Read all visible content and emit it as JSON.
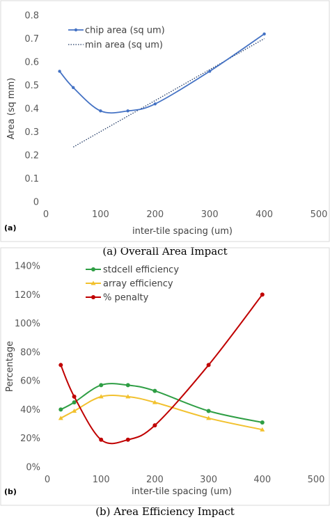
{
  "chart_data": [
    {
      "type": "line",
      "panel_label": "(a)",
      "caption": "(a) Overall Area Impact",
      "xlabel": "inter-tile spacing (um)",
      "ylabel": "Area  (sq mm)",
      "xlim": [
        0,
        500
      ],
      "ylim": [
        0,
        0.8
      ],
      "x_ticks": [
        "0",
        "100",
        "200",
        "300",
        "400",
        "500"
      ],
      "y_ticks": [
        "0",
        "0.1",
        "0.2",
        "0.3",
        "0.4",
        "0.5",
        "0.6",
        "0.7",
        "0.8"
      ],
      "grid": false,
      "legend_position": "top-left",
      "series": [
        {
          "name": "chip area (sq um)",
          "color": "#4472C4",
          "style": "solid-smooth-markers",
          "x": [
            25,
            50,
            100,
            150,
            200,
            300,
            400
          ],
          "y": [
            0.56,
            0.49,
            0.39,
            0.39,
            0.42,
            0.56,
            0.72
          ]
        },
        {
          "name": "min area (sq um)",
          "color": "#1F3864",
          "style": "dotted",
          "x": [
            50,
            400
          ],
          "y": [
            0.235,
            0.7
          ]
        }
      ]
    },
    {
      "type": "line",
      "panel_label": "(b)",
      "caption": "(b) Area Efficiency Impact",
      "xlabel": "inter-tile spacing (um)",
      "ylabel": "Percentage",
      "xlim": [
        0,
        500
      ],
      "ylim": [
        0,
        140
      ],
      "x_ticks": [
        "0",
        "100",
        "200",
        "300",
        "400",
        "500"
      ],
      "y_ticks": [
        "0%",
        "20%",
        "40%",
        "60%",
        "80%",
        "100%",
        "120%",
        "140%"
      ],
      "grid": false,
      "legend_position": "top-left",
      "series": [
        {
          "name": "stdcell efficiency",
          "color": "#2E9E44",
          "marker": "circle",
          "x": [
            25,
            50,
            100,
            150,
            200,
            300,
            400
          ],
          "y": [
            40,
            45,
            57,
            57,
            53,
            39,
            31
          ]
        },
        {
          "name": "array efficiency",
          "color": "#F2C12E",
          "marker": "triangle",
          "x": [
            25,
            50,
            100,
            150,
            200,
            300,
            400
          ],
          "y": [
            34,
            39,
            49,
            49,
            45,
            34,
            26
          ]
        },
        {
          "name": "% penalty",
          "color": "#C00000",
          "marker": "circle",
          "x": [
            25,
            50,
            100,
            150,
            200,
            300,
            400
          ],
          "y": [
            71,
            49,
            19,
            19,
            29,
            71,
            120
          ]
        }
      ]
    }
  ]
}
